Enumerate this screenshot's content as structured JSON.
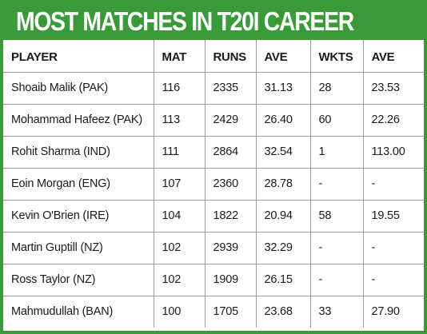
{
  "title": "MOST MATCHES IN T20I CAREER",
  "columns": [
    "PLAYER",
    "MAT",
    "RUNS",
    "AVE",
    "WKTS",
    "AVE"
  ],
  "rows": [
    [
      "Shoaib Malik (PAK)",
      "116",
      "2335",
      "31.13",
      "28",
      "23.53"
    ],
    [
      "Mohammad Hafeez (PAK)",
      "113",
      "2429",
      "26.40",
      "60",
      "22.26"
    ],
    [
      "Rohit Sharma (IND)",
      "111",
      "2864",
      "32.54",
      "1",
      "113.00"
    ],
    [
      "Eoin Morgan (ENG)",
      "107",
      "2360",
      "28.78",
      "-",
      "-"
    ],
    [
      "Kevin O'Brien (IRE)",
      "104",
      "1822",
      "20.94",
      "58",
      "19.55"
    ],
    [
      "Martin Guptill (NZ)",
      "102",
      "2939",
      "32.29",
      "-",
      "-"
    ],
    [
      "Ross Taylor (NZ)",
      "102",
      "1909",
      "26.15",
      "-",
      "-"
    ],
    [
      "Mahmudullah (BAN)",
      "100",
      "1705",
      "23.68",
      "33",
      "27.90"
    ]
  ],
  "colors": {
    "accent": "#3a9a3a",
    "title_text": "#ffffff",
    "body_text": "#1a1a1a",
    "grid": "#9a9a9a"
  }
}
